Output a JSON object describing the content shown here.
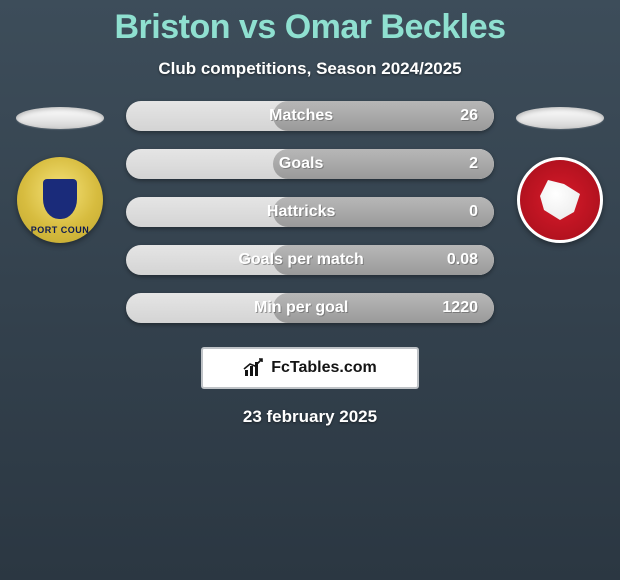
{
  "background_from": "#3d4d5a",
  "background_to": "#2b3742",
  "title_text": "Briston vs Omar Beckles",
  "title_color": "#8fe0d0",
  "subtitle": "Club competitions, Season 2024/2025",
  "date_text": "23 february 2025",
  "left_pill_color": "#e6e6e6",
  "right_pill_color": "#e6e6e6",
  "pill_base_color": "#e5e5e5",
  "pill_fill_color": "#b7b7b7",
  "stat_label_color": "#ffffff",
  "stat_value_color": "#ffffff",
  "stats": [
    {
      "label": "Matches",
      "right_value": "26",
      "fill_pct": 60
    },
    {
      "label": "Goals",
      "right_value": "2",
      "fill_pct": 60
    },
    {
      "label": "Hattricks",
      "right_value": "0",
      "fill_pct": 60
    },
    {
      "label": "Goals per match",
      "right_value": "0.08",
      "fill_pct": 60
    },
    {
      "label": "Min per goal",
      "right_value": "1220",
      "fill_pct": 60
    }
  ],
  "brand_text": "FcTables.com"
}
